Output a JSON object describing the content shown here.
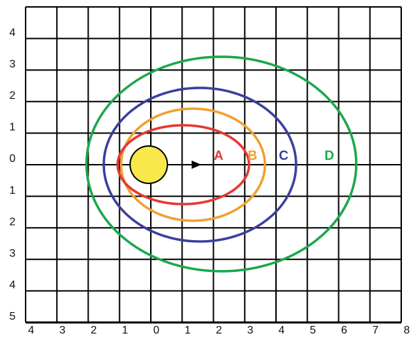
{
  "y_labels": [
    "4",
    "3",
    "2",
    "1",
    "0",
    "1",
    "2",
    "3",
    "4",
    "5"
  ],
  "x_labels": [
    "4",
    "3",
    "2",
    "1",
    "0",
    "1",
    "2",
    "3",
    "4",
    "5",
    "6",
    "7",
    "8"
  ],
  "orbits": [
    {
      "label": "A"
    },
    {
      "label": "B"
    },
    {
      "label": "C"
    },
    {
      "label": "D"
    }
  ]
}
